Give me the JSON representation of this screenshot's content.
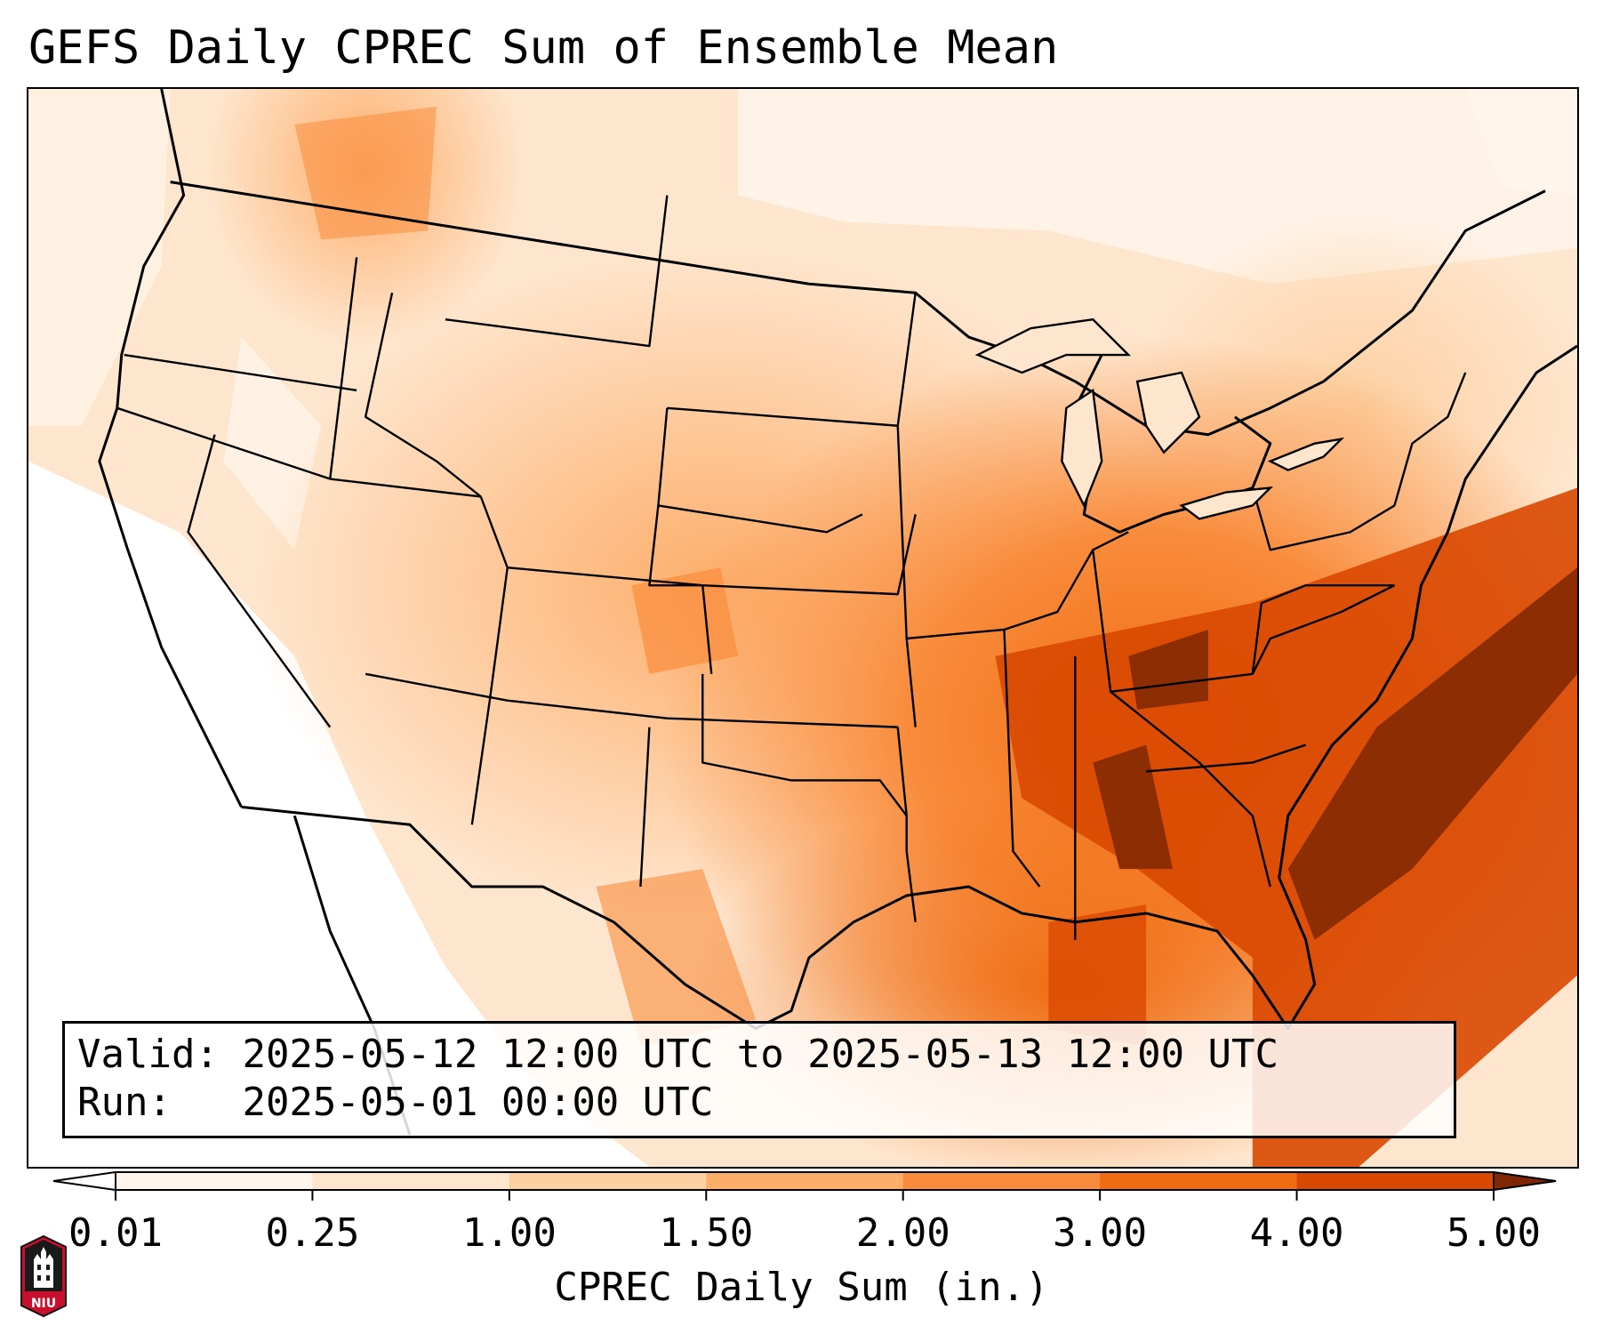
{
  "title": "GEFS Daily CPREC Sum of Ensemble Mean",
  "info_box": {
    "valid_label": "Valid:",
    "valid_value": "2025-05-12 12:00 UTC to 2025-05-13 12:00 UTC",
    "run_label": "Run:",
    "run_value": "2025-05-01 00:00 UTC"
  },
  "colorbar": {
    "label": "CPREC Daily Sum (in.)",
    "ticks": [
      "0.01",
      "0.25",
      "1.00",
      "1.50",
      "2.00",
      "3.00",
      "4.00",
      "5.00"
    ],
    "colors": [
      "#fff5eb",
      "#fee6ce",
      "#fdd0a2",
      "#fdae6b",
      "#f98c3c",
      "#ef6c12",
      "#d94801",
      "#8c2d04"
    ],
    "under_color": "#ffffff",
    "over_color": "#7f2704",
    "extend": "both"
  },
  "map": {
    "projection": "Lambert conformal, Continental United States",
    "field": "GEFS ensemble mean convective precipitation, daily sum (in.)",
    "max_region": "Southeast US / western Atlantic (AL, TN, GA, Carolinas)",
    "outline_color": "#000000"
  },
  "logo": {
    "text": "NIU",
    "color": "#c8102e"
  }
}
